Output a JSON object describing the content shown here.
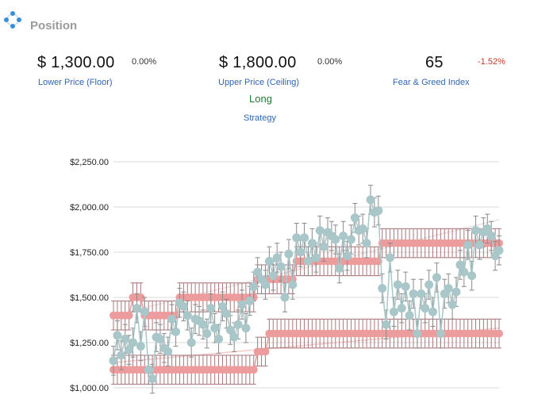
{
  "header": {
    "title": "Position",
    "icon": "position-icon"
  },
  "stats": {
    "floor": {
      "value": "$ 1,300.00",
      "change": "0.00%",
      "label": "Lower Price (Floor)"
    },
    "ceiling": {
      "value": "$ 1,800.00",
      "change": "0.00%",
      "label": "Upper Price (Ceiling)"
    },
    "fear_greed": {
      "value": "65",
      "change": "-1.52%",
      "label": "Fear & Greed Index"
    }
  },
  "strategy": {
    "value": "Long",
    "label": "Strategy"
  },
  "colors": {
    "accent_blue": "#2f66b3",
    "strategy_green": "#1e7b34",
    "negative_red": "#c0392b",
    "price_series": "#a9c7c9",
    "range_series": "#ec9c9c"
  },
  "chart_data": {
    "type": "line",
    "title": "",
    "xlabel": "",
    "ylabel": "",
    "ylim": [
      1000,
      2250
    ],
    "y_ticks": [
      "$1,000.00",
      "$1,250.00",
      "$1,500.00",
      "$1,750.00",
      "$2,000.00",
      "$2,250.00"
    ],
    "y_tick_values": [
      1000,
      1250,
      1500,
      1750,
      2000,
      2250
    ],
    "grid": true,
    "legend": "none",
    "points": 100,
    "error_bar": 80,
    "series": [
      {
        "role": "price",
        "values": [
          1150,
          1290,
          1180,
          1270,
          1210,
          1250,
          1440,
          1230,
          1420,
          1100,
          1050,
          1280,
          1270,
          1220,
          1200,
          1380,
          1310,
          1470,
          1450,
          1400,
          1250,
          1380,
          1370,
          1350,
          1300,
          1440,
          1330,
          1270,
          1450,
          1410,
          1320,
          1280,
          1350,
          1460,
          1330,
          1480,
          1560,
          1640,
          1600,
          1570,
          1700,
          1620,
          1720,
          1670,
          1500,
          1740,
          1570,
          1830,
          1750,
          1830,
          1700,
          1800,
          1720,
          1870,
          1780,
          1860,
          1840,
          1820,
          1660,
          1840,
          1730,
          1820,
          1940,
          1870,
          1880,
          1800,
          2040,
          1970,
          1980,
          1550,
          1350,
          1720,
          1420,
          1570,
          1440,
          1560,
          1400,
          1520,
          1300,
          1520,
          1440,
          1570,
          1420,
          1610,
          1300,
          1520,
          1550,
          1460,
          1530,
          1680,
          1640,
          1790,
          1620,
          1870,
          1790,
          1860,
          1880,
          1840,
          1730,
          1760
        ]
      },
      {
        "role": "lower",
        "values": [
          1100,
          1100,
          1100,
          1100,
          1100,
          1100,
          1100,
          1100,
          1100,
          1100,
          1100,
          1100,
          1100,
          1100,
          1100,
          1100,
          1100,
          1100,
          1100,
          1100,
          1100,
          1100,
          1100,
          1100,
          1100,
          1100,
          1100,
          1100,
          1100,
          1100,
          1100,
          1100,
          1100,
          1100,
          1100,
          1100,
          1100,
          1200,
          1200,
          1200,
          1300,
          1300,
          1300,
          1300,
          1300,
          1300,
          1300,
          1300,
          1300,
          1300,
          1300,
          1300,
          1300,
          1300,
          1300,
          1300,
          1300,
          1300,
          1300,
          1300,
          1300,
          1300,
          1300,
          1300,
          1300,
          1300,
          1300,
          1300,
          1300,
          1300,
          1300,
          1300,
          1300,
          1300,
          1300,
          1300,
          1300,
          1300,
          1300,
          1300,
          1300,
          1300,
          1300,
          1300,
          1300,
          1300,
          1300,
          1300,
          1300,
          1300,
          1300,
          1300,
          1300,
          1300,
          1300,
          1300,
          1300,
          1300,
          1300,
          1300
        ]
      },
      {
        "role": "upper",
        "values": [
          1400,
          1400,
          1400,
          1400,
          1400,
          1500,
          1500,
          1500,
          1400,
          1400,
          1400,
          1400,
          1400,
          1400,
          1400,
          1400,
          1400,
          1500,
          1500,
          1500,
          1500,
          1500,
          1500,
          1500,
          1500,
          1500,
          1500,
          1500,
          1500,
          1500,
          1500,
          1500,
          1500,
          1500,
          1500,
          1500,
          1500,
          1600,
          1600,
          1600,
          1600,
          1600,
          1600,
          1600,
          1600,
          1600,
          1600,
          1700,
          1700,
          1700,
          1700,
          1700,
          1700,
          1700,
          1700,
          1700,
          1700,
          1700,
          1700,
          1700,
          1700,
          1700,
          1700,
          1700,
          1700,
          1700,
          1700,
          1700,
          1700,
          1800,
          1800,
          1800,
          1800,
          1800,
          1800,
          1800,
          1800,
          1800,
          1800,
          1800,
          1800,
          1800,
          1800,
          1800,
          1800,
          1800,
          1800,
          1800,
          1800,
          1800,
          1800,
          1800,
          1800,
          1800,
          1800,
          1800,
          1800,
          1800,
          1800,
          1800
        ]
      }
    ],
    "trendlines": [
      {
        "role": "price-trend",
        "from": 1400,
        "to": 1930
      },
      {
        "role": "lower-trend",
        "from": 1140,
        "to": 1330
      }
    ]
  }
}
